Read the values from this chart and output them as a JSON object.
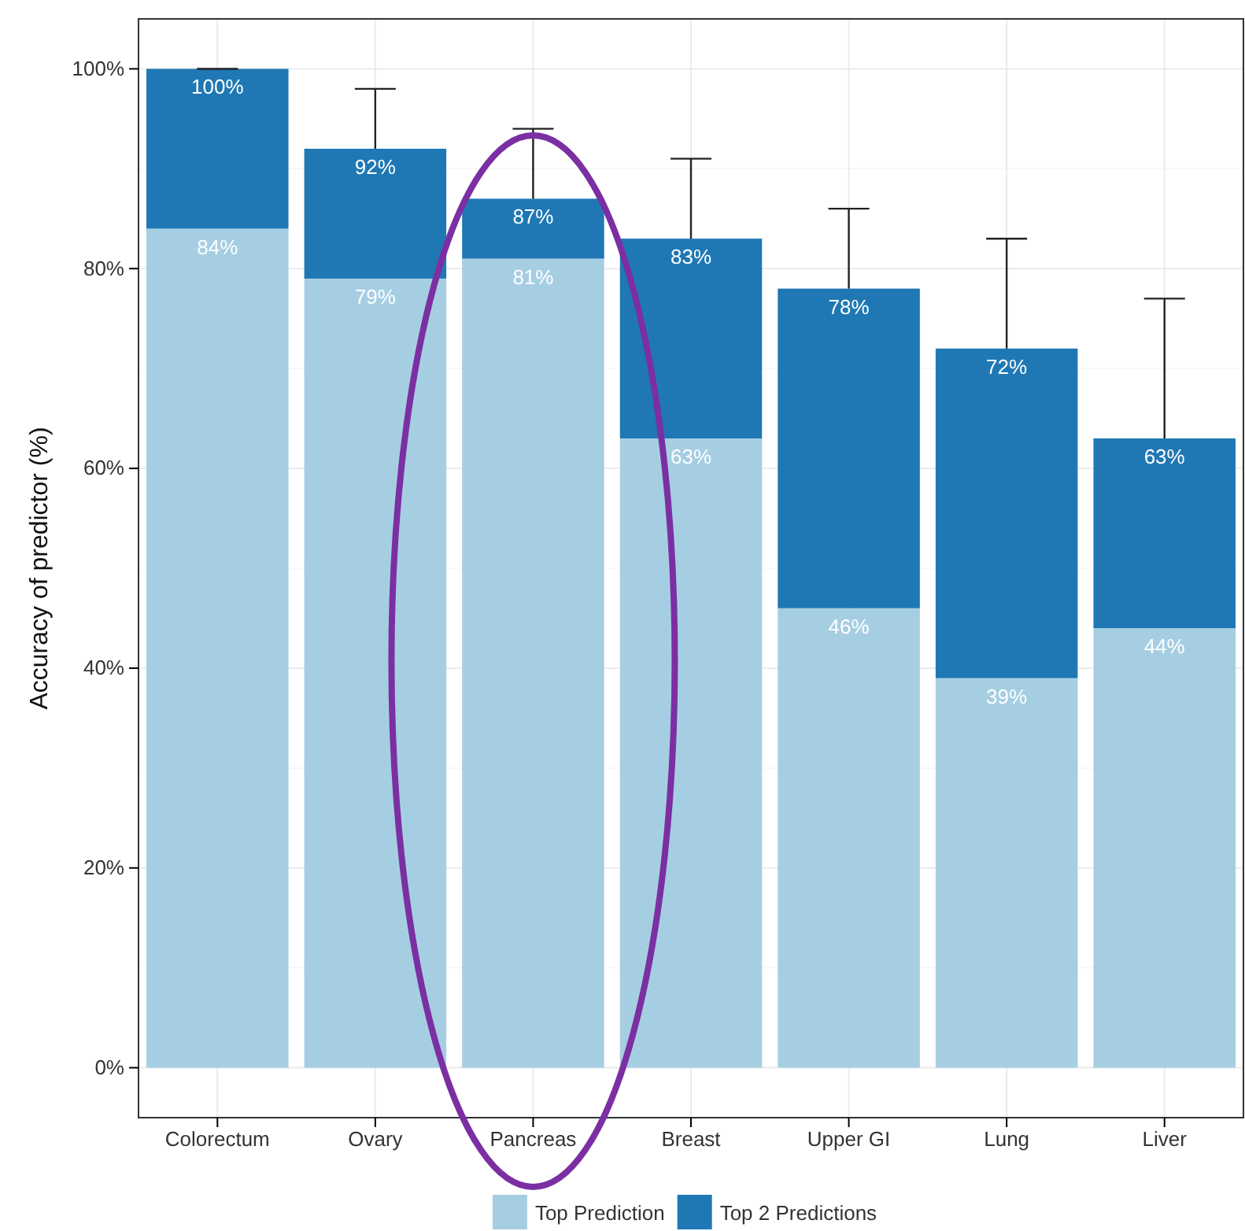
{
  "chart_data": {
    "type": "bar",
    "ylabel": "Accuracy of predictor (%)",
    "categories": [
      "Colorectum",
      "Ovary",
      "Pancreas",
      "Breast",
      "Upper GI",
      "Lung",
      "Liver"
    ],
    "stacked": true,
    "totals": [
      "100%",
      "92%",
      "87%",
      "83%",
      "78%",
      "72%",
      "63%"
    ],
    "series": [
      {
        "name": "Top Prediction",
        "color": "#a6cee3",
        "values": [
          84,
          79,
          81,
          63,
          46,
          39,
          44
        ],
        "value_labels": [
          "84%",
          "79%",
          "81%",
          "63%",
          "46%",
          "39%",
          "44%"
        ]
      },
      {
        "name": "Top 2 Predictions",
        "color": "#1f78b4",
        "values": [
          16,
          13,
          6,
          20,
          32,
          33,
          19
        ],
        "errors": [
          [
            100,
            100
          ],
          [
            92,
            98
          ],
          [
            87,
            94
          ],
          [
            83,
            91
          ],
          [
            78,
            86
          ],
          [
            72,
            83
          ],
          [
            63,
            77
          ]
        ]
      }
    ],
    "ylim": [
      -5,
      105
    ],
    "yticks": [
      {
        "value": 0,
        "label": "0%"
      },
      {
        "value": 20,
        "label": "20%"
      },
      {
        "value": 40,
        "label": "40%"
      },
      {
        "value": 60,
        "label": "60%"
      },
      {
        "value": 80,
        "label": "80%"
      },
      {
        "value": 100,
        "label": "100%"
      }
    ],
    "grid": true,
    "legend": "bottom"
  }
}
